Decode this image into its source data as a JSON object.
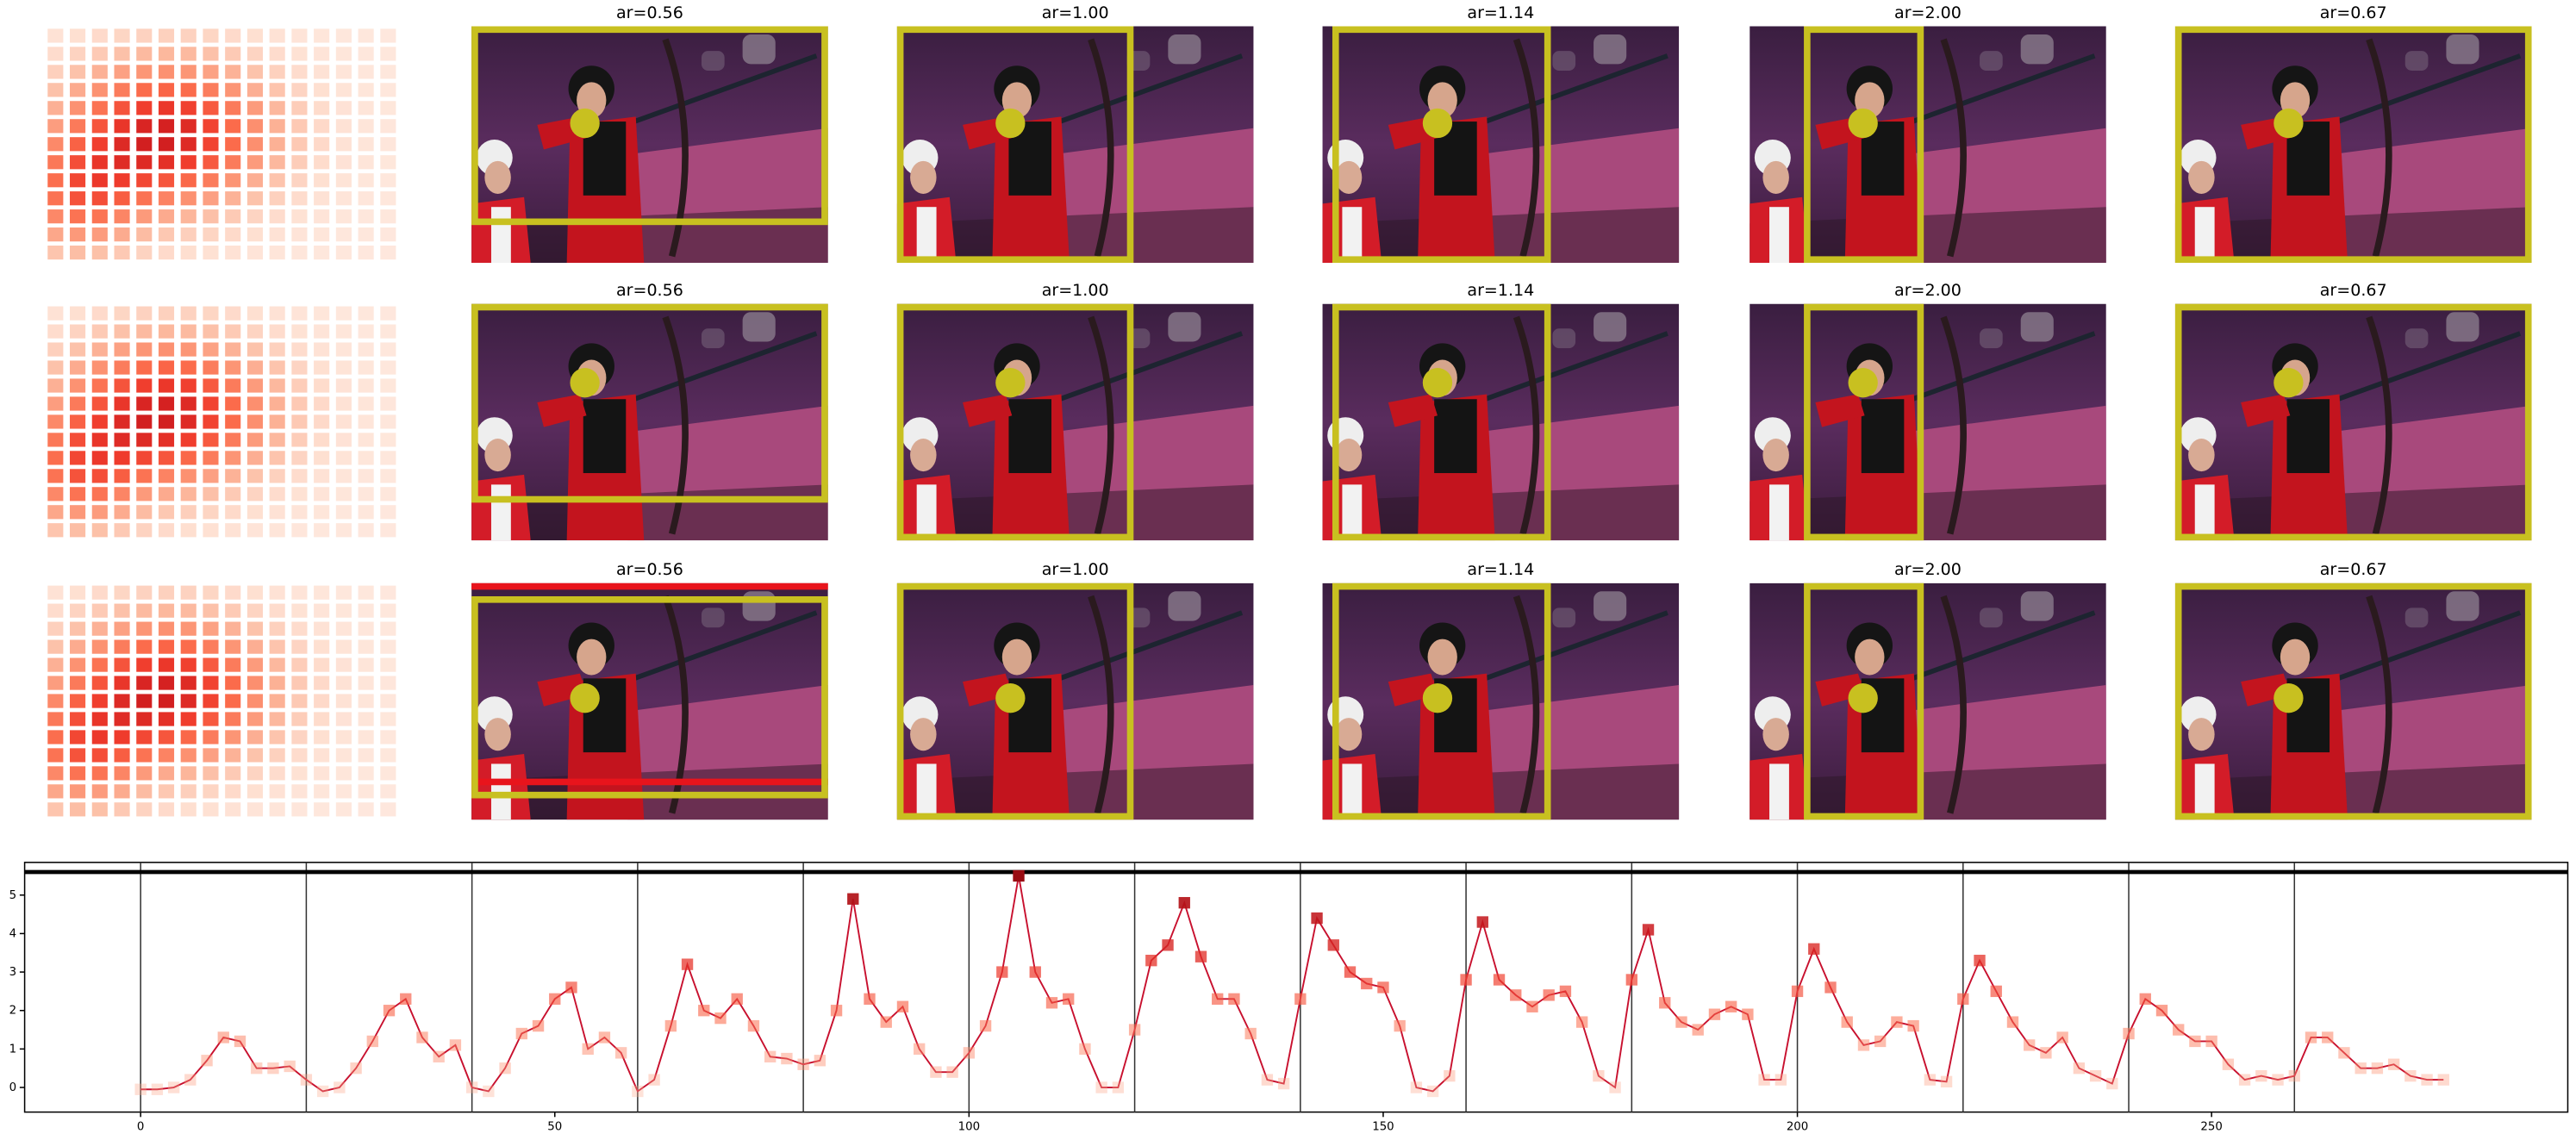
{
  "panels": {
    "rows": [
      {
        "titles": [
          "ar=0.56",
          "ar=1.00",
          "ar=1.14",
          "ar=2.00",
          "ar=0.67"
        ]
      },
      {
        "titles": [
          "ar=0.56",
          "ar=1.00",
          "ar=1.14",
          "ar=2.00",
          "ar=0.67"
        ]
      },
      {
        "titles": [
          "ar=0.56",
          "ar=1.00",
          "ar=1.14",
          "ar=2.00",
          "ar=0.67"
        ]
      }
    ]
  },
  "chart_data": {
    "type": "line",
    "x": [
      0,
      2,
      4,
      6,
      8,
      10,
      12,
      14,
      16,
      18,
      20,
      22,
      24,
      26,
      28,
      30,
      32,
      34,
      36,
      38,
      40,
      42,
      44,
      46,
      48,
      50,
      52,
      54,
      56,
      58,
      60,
      62,
      64,
      66,
      68,
      70,
      72,
      74,
      76,
      78,
      80,
      82,
      84,
      86,
      88,
      90,
      92,
      94,
      96,
      98,
      100,
      102,
      104,
      106,
      108,
      110,
      112,
      114,
      116,
      118,
      120,
      122,
      124,
      126,
      128,
      130,
      132,
      134,
      136,
      138,
      140,
      142,
      144,
      146,
      148,
      150,
      152,
      154,
      156,
      158,
      160,
      162,
      164,
      166,
      168,
      170,
      172,
      174,
      176,
      178,
      180,
      182,
      184,
      186,
      188,
      190,
      192,
      194,
      196,
      198,
      200,
      202,
      204,
      206,
      208,
      210,
      212,
      214,
      216,
      218,
      220,
      222,
      224,
      226,
      228,
      230,
      232,
      234,
      236,
      238,
      240,
      242,
      244,
      246,
      248,
      250,
      252,
      254,
      256,
      258,
      260,
      262,
      264,
      266,
      268,
      270,
      272,
      274,
      276,
      278
    ],
    "series": [
      {
        "color": "#c8102e",
        "values": [
          -0.05,
          -0.05,
          0.0,
          0.2,
          0.7,
          1.3,
          1.2,
          0.5,
          0.5,
          0.55,
          0.2,
          -0.1,
          0.0,
          0.5,
          1.2,
          2.0,
          2.3,
          1.3,
          0.8,
          1.1,
          0.0,
          -0.1,
          0.5,
          1.4,
          1.6,
          2.3,
          2.6,
          1.0,
          1.3,
          0.9,
          -0.1,
          0.2,
          1.6,
          3.2,
          2.0,
          1.8,
          2.3,
          1.6,
          0.8,
          0.75,
          0.6,
          0.7,
          2.0,
          4.9,
          2.3,
          1.7,
          2.1,
          1.0,
          0.4,
          0.4,
          0.9,
          1.6,
          3.0,
          5.5,
          3.0,
          2.2,
          2.3,
          1.0,
          0.0,
          0.0,
          1.5,
          3.3,
          3.7,
          4.8,
          3.4,
          2.3,
          2.3,
          1.4,
          0.2,
          0.1,
          2.3,
          4.4,
          3.7,
          3.0,
          2.7,
          2.6,
          1.6,
          0.0,
          -0.1,
          0.3,
          2.8,
          4.3,
          2.8,
          2.4,
          2.1,
          2.4,
          2.5,
          1.7,
          0.3,
          0.0,
          2.8,
          4.1,
          2.2,
          1.7,
          1.5,
          1.9,
          2.1,
          1.9,
          0.2,
          0.2,
          2.5,
          3.6,
          2.6,
          1.7,
          1.1,
          1.2,
          1.7,
          1.6,
          0.2,
          0.15,
          2.3,
          3.3,
          2.5,
          1.7,
          1.1,
          0.9,
          1.3,
          0.5,
          0.3,
          0.1,
          1.4,
          2.3,
          2.0,
          1.5,
          1.2,
          1.2,
          0.6,
          0.2,
          0.3,
          0.2,
          0.3,
          1.3,
          1.3,
          0.9,
          0.5,
          0.5,
          0.6,
          0.3,
          0.2,
          0.2
        ]
      }
    ],
    "xlim": [
      -14,
      293
    ],
    "ylim": [
      -0.64,
      5.85
    ],
    "xticks": [
      0,
      50,
      100,
      150,
      200,
      250
    ],
    "yticks": [
      0,
      1,
      2,
      3,
      4,
      5
    ],
    "vlines": [
      0,
      20,
      40,
      60,
      80,
      100,
      120,
      140,
      160,
      180,
      200,
      220,
      240,
      260
    ],
    "hline": 5.6,
    "marker": "square",
    "colormap": "Reds"
  }
}
